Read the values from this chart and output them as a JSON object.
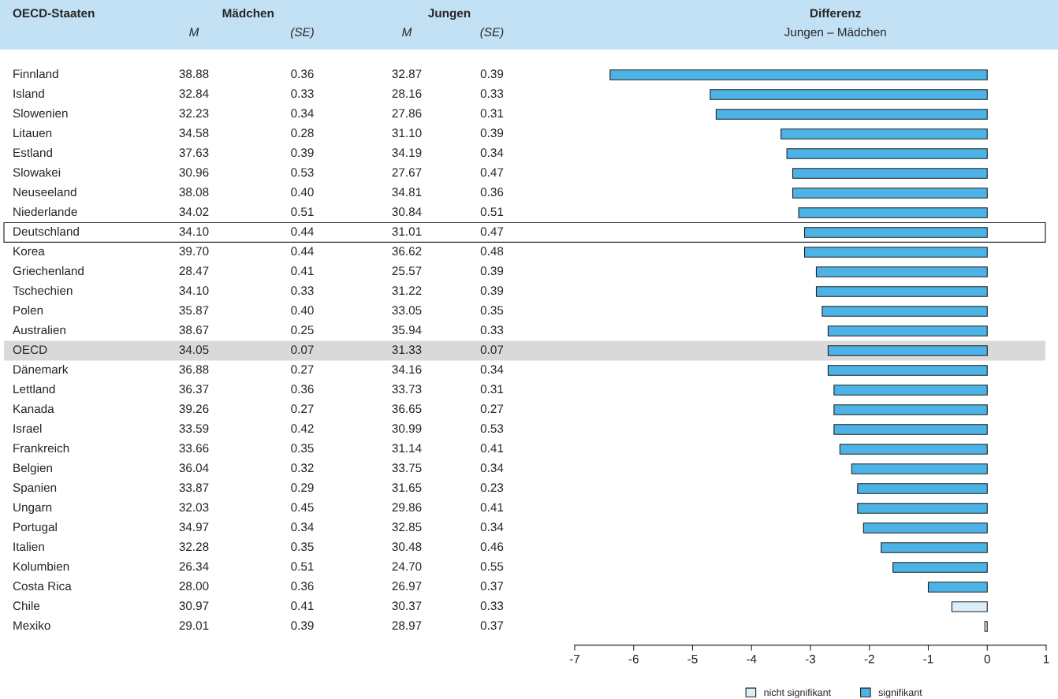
{
  "chart_data": [
    {
      "type": "heatmap",
      "data_labels": true,
      "ylabel": "OECD-Staaten",
      "annotations": [
        "Mädchen",
        "Jungen"
      ],
      "categories": [
        "M",
        "(SE)",
        "M",
        "(SE)"
      ],
      "y_categories": [
        "Finnland",
        "Island",
        "Slowenien",
        "Litauen",
        "Estland",
        "Slowakei",
        "Neuseeland",
        "Niederlande",
        "Deutschland",
        "Korea",
        "Griechenland",
        "Tschechien",
        "Polen",
        "Australien",
        "OECD",
        "Dänemark",
        "Lettland",
        "Kanada",
        "Israel",
        "Frankreich",
        "Belgien",
        "Spanien",
        "Ungarn",
        "Portugal",
        "Italien",
        "Kolumbien",
        "Costa Rica",
        "Chile",
        "Mexiko"
      ],
      "cells": [
        [
          38.88,
          0.36,
          32.87,
          0.39
        ],
        [
          32.84,
          0.33,
          28.16,
          0.33
        ],
        [
          32.23,
          0.34,
          27.86,
          0.31
        ],
        [
          34.58,
          0.28,
          31.1,
          0.39
        ],
        [
          37.63,
          0.39,
          34.19,
          0.34
        ],
        [
          30.96,
          0.53,
          27.67,
          0.47
        ],
        [
          38.08,
          0.4,
          34.81,
          0.36
        ],
        [
          34.02,
          0.51,
          30.84,
          0.51
        ],
        [
          34.1,
          0.44,
          31.01,
          0.47
        ],
        [
          39.7,
          0.44,
          36.62,
          0.48
        ],
        [
          28.47,
          0.41,
          25.57,
          0.39
        ],
        [
          34.1,
          0.33,
          31.22,
          0.39
        ],
        [
          35.87,
          0.4,
          33.05,
          0.35
        ],
        [
          38.67,
          0.25,
          35.94,
          0.33
        ],
        [
          34.05,
          0.07,
          31.33,
          0.07
        ],
        [
          36.88,
          0.27,
          34.16,
          0.34
        ],
        [
          36.37,
          0.36,
          33.73,
          0.31
        ],
        [
          39.26,
          0.27,
          36.65,
          0.27
        ],
        [
          33.59,
          0.42,
          30.99,
          0.53
        ],
        [
          33.66,
          0.35,
          31.14,
          0.41
        ],
        [
          36.04,
          0.32,
          33.75,
          0.34
        ],
        [
          33.87,
          0.29,
          31.65,
          0.23
        ],
        [
          32.03,
          0.45,
          29.86,
          0.41
        ],
        [
          34.97,
          0.34,
          32.85,
          0.34
        ],
        [
          32.28,
          0.35,
          30.48,
          0.46
        ],
        [
          26.34,
          0.51,
          24.7,
          0.55
        ],
        [
          28.0,
          0.36,
          26.97,
          0.37
        ],
        [
          30.97,
          0.41,
          30.37,
          0.33
        ],
        [
          29.01,
          0.39,
          28.97,
          0.37
        ]
      ],
      "cell_labels": [
        [
          "38.88",
          "0.36",
          "32.87",
          "0.39"
        ],
        [
          "32.84",
          "0.33",
          "28.16",
          "0.33"
        ],
        [
          "32.23",
          "0.34",
          "27.86",
          "0.31"
        ],
        [
          "34.58",
          "0.28",
          "31.10",
          "0.39"
        ],
        [
          "37.63",
          "0.39",
          "34.19",
          "0.34"
        ],
        [
          "30.96",
          "0.53",
          "27.67",
          "0.47"
        ],
        [
          "38.08",
          "0.40",
          "34.81",
          "0.36"
        ],
        [
          "34.02",
          "0.51",
          "30.84",
          "0.51"
        ],
        [
          "34.10",
          "0.44",
          "31.01",
          "0.47"
        ],
        [
          "39.70",
          "0.44",
          "36.62",
          "0.48"
        ],
        [
          "28.47",
          "0.41",
          "25.57",
          "0.39"
        ],
        [
          "34.10",
          "0.33",
          "31.22",
          "0.39"
        ],
        [
          "35.87",
          "0.40",
          "33.05",
          "0.35"
        ],
        [
          "38.67",
          "0.25",
          "35.94",
          "0.33"
        ],
        [
          "34.05",
          "0.07",
          "31.33",
          "0.07"
        ],
        [
          "36.88",
          "0.27",
          "34.16",
          "0.34"
        ],
        [
          "36.37",
          "0.36",
          "33.73",
          "0.31"
        ],
        [
          "39.26",
          "0.27",
          "36.65",
          "0.27"
        ],
        [
          "33.59",
          "0.42",
          "30.99",
          "0.53"
        ],
        [
          "33.66",
          "0.35",
          "31.14",
          "0.41"
        ],
        [
          "36.04",
          "0.32",
          "33.75",
          "0.34"
        ],
        [
          "33.87",
          "0.29",
          "31.65",
          "0.23"
        ],
        [
          "32.03",
          "0.45",
          "29.86",
          "0.41"
        ],
        [
          "34.97",
          "0.34",
          "32.85",
          "0.34"
        ],
        [
          "32.28",
          "0.35",
          "30.48",
          "0.46"
        ],
        [
          "26.34",
          "0.51",
          "24.70",
          "0.55"
        ],
        [
          "28.00",
          "0.36",
          "26.97",
          "0.37"
        ],
        [
          "30.97",
          "0.41",
          "30.37",
          "0.33"
        ],
        [
          "29.01",
          "0.39",
          "28.97",
          "0.37"
        ]
      ],
      "bands": [
        {
          "axis": "y",
          "from": "OECD",
          "to": "OECD",
          "color": "#d9d9d9"
        },
        {
          "axis": "y",
          "from": "Deutschland",
          "to": "Deutschland",
          "color": "#ffffff"
        }
      ]
    },
    {
      "type": "bar",
      "orientation": "horizontal",
      "title": "Differenz",
      "subtitle": "Jungen – Mädchen",
      "categories": [
        null,
        null,
        null,
        null,
        null,
        null,
        null,
        null,
        null,
        null,
        null,
        null,
        null,
        null,
        null,
        null,
        null,
        null,
        null,
        null,
        null,
        null,
        null,
        null,
        null,
        null,
        null,
        null,
        null
      ],
      "series": [
        {
          "name": "nicht signifikant",
          "color": "#ddeef9",
          "values": [
            null,
            null,
            null,
            null,
            null,
            null,
            null,
            null,
            null,
            null,
            null,
            null,
            null,
            null,
            null,
            null,
            null,
            null,
            null,
            null,
            null,
            null,
            null,
            null,
            null,
            null,
            null,
            -0.6,
            -0.04
          ]
        },
        {
          "name": "signifikant",
          "color": "#4db3e6",
          "values": [
            -6.4,
            -4.7,
            -4.6,
            -3.5,
            -3.4,
            -3.3,
            -3.3,
            -3.2,
            -3.1,
            -3.1,
            -2.9,
            -2.9,
            -2.8,
            -2.7,
            -2.7,
            -2.7,
            -2.6,
            -2.6,
            -2.6,
            -2.5,
            -2.3,
            -2.2,
            -2.2,
            -2.1,
            -1.8,
            -1.6,
            -1.0,
            null,
            null
          ]
        }
      ],
      "xlim": [
        -7,
        1
      ],
      "xticks": [
        {
          "value": -7,
          "label": "-7"
        },
        {
          "value": -6,
          "label": "-6"
        },
        {
          "value": -5,
          "label": "-5"
        },
        {
          "value": -4,
          "label": "-4"
        },
        {
          "value": -3,
          "label": "-3"
        },
        {
          "value": -2,
          "label": "-2"
        },
        {
          "value": -1,
          "label": "-1"
        },
        0,
        1
      ],
      "tick_labels": "x",
      "legend": "bottom"
    }
  ]
}
